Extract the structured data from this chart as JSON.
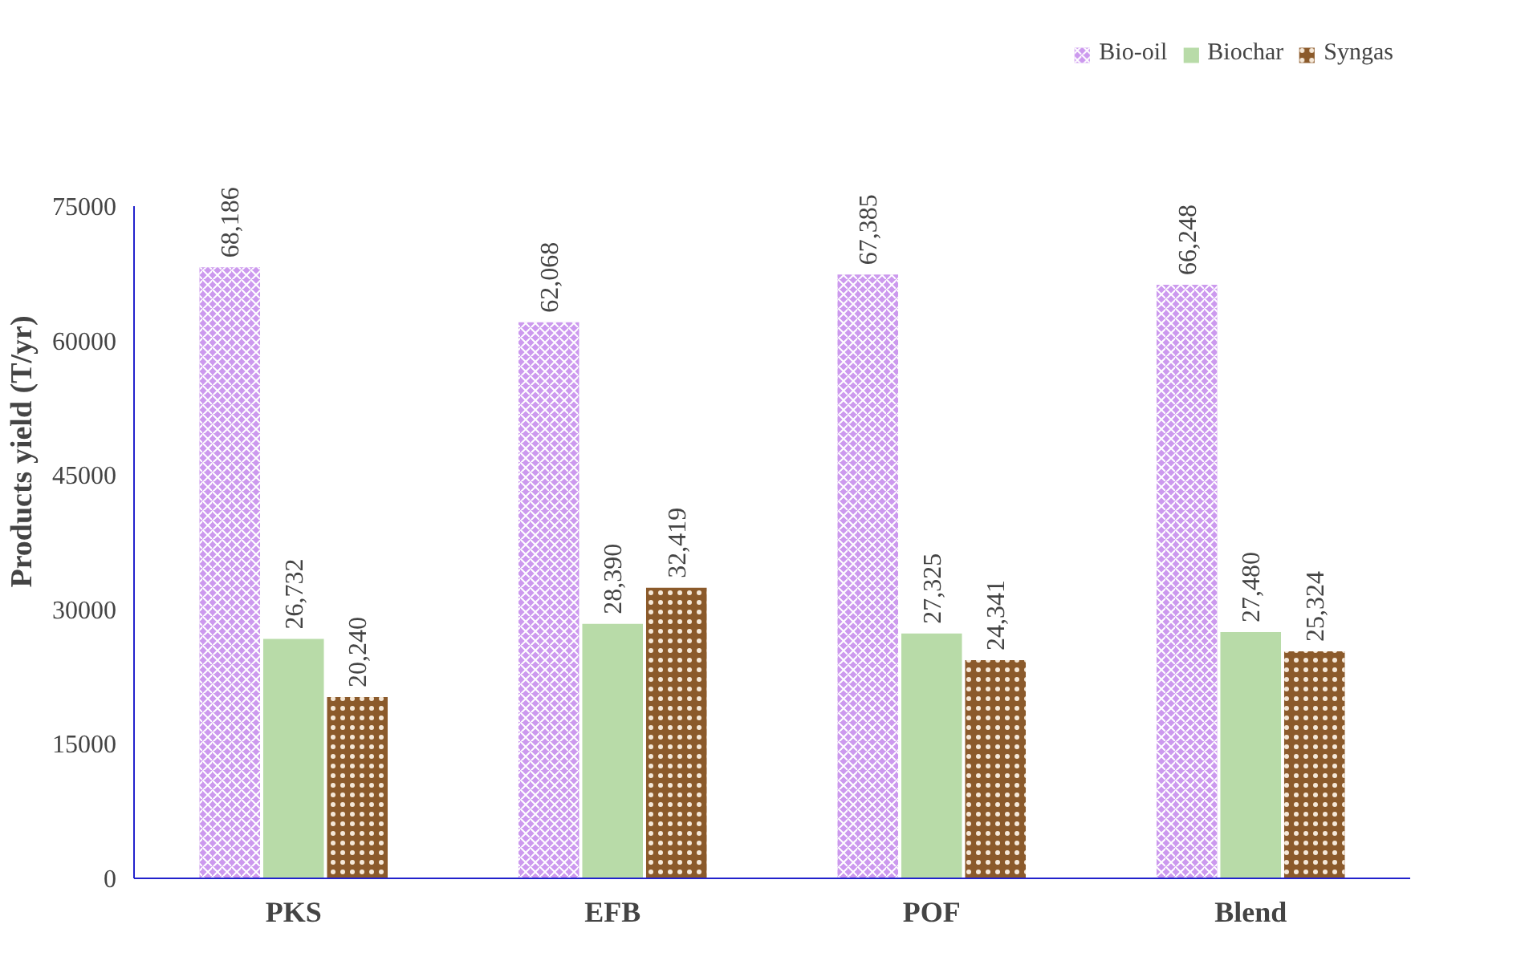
{
  "chart_data": {
    "type": "bar",
    "ylabel": "Products yield (T/yr)",
    "categories": [
      "PKS",
      "EFB",
      "POF",
      "Blend"
    ],
    "series": [
      {
        "name": "Bio-oil",
        "color": "#cc99ee",
        "values": [
          68186,
          62068,
          67385,
          66248
        ],
        "value_labels": [
          "68,186",
          "62,068",
          "67,385",
          "66,248"
        ]
      },
      {
        "name": "Biochar",
        "color": "#b8dba8",
        "values": [
          26732,
          28390,
          27325,
          27480
        ],
        "value_labels": [
          "26,732",
          "28,390",
          "27,325",
          "27,480"
        ]
      },
      {
        "name": "Syngas",
        "color": "#8b5a2b",
        "values": [
          20240,
          32419,
          24341,
          25324
        ],
        "value_labels": [
          "20,240",
          "32,419",
          "24,341",
          "25,324"
        ]
      }
    ],
    "ylim": [
      0,
      75000
    ],
    "yticks": [
      0,
      15000,
      30000,
      45000,
      60000,
      75000
    ],
    "grid": false,
    "legend": "top right"
  }
}
